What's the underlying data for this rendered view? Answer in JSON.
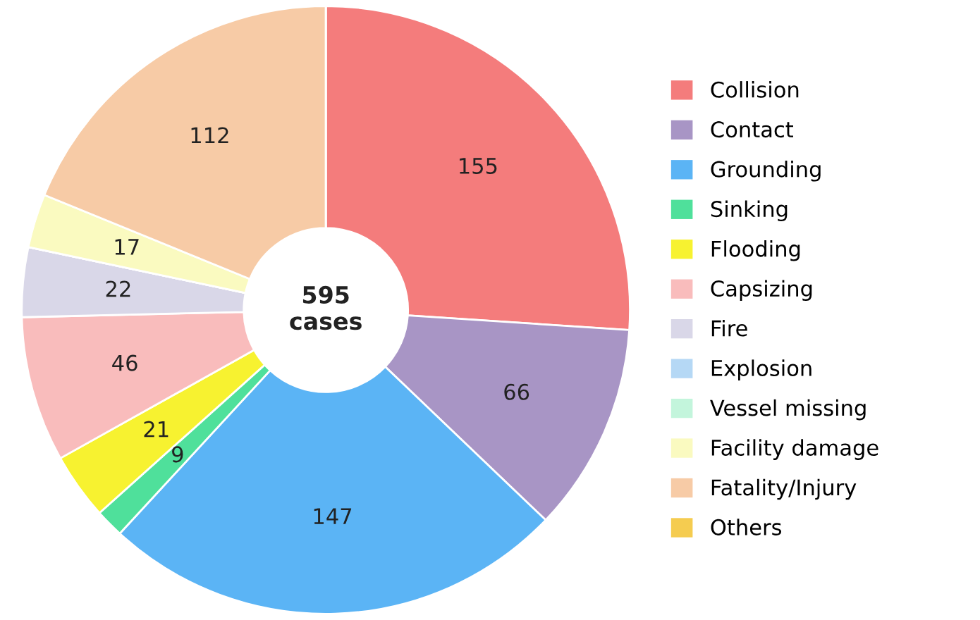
{
  "chart_data": {
    "type": "donut",
    "categories": [
      "Collision",
      "Contact",
      "Grounding",
      "Sinking",
      "Flooding",
      "Capsizing",
      "Fire",
      "Explosion",
      "Vessel missing",
      "Facility damage",
      "Fatality/Injury",
      "Others"
    ],
    "values": [
      155,
      66,
      147,
      9,
      21,
      46,
      22,
      0,
      0,
      17,
      112,
      0
    ],
    "colors": [
      "#f47c7c",
      "#a895c5",
      "#5bb4f5",
      "#4fe09b",
      "#f7f230",
      "#f9bcbc",
      "#d9d7e8",
      "#b5d8f5",
      "#c3f5dc",
      "#fafac0",
      "#f7cba6",
      "#f5cc50"
    ],
    "value_labels": [
      "155",
      "66",
      "147",
      "9",
      "21",
      "46",
      "22",
      null,
      null,
      "17",
      "112",
      null
    ],
    "annotations": [
      "595\ncases"
    ],
    "legend": "right"
  }
}
